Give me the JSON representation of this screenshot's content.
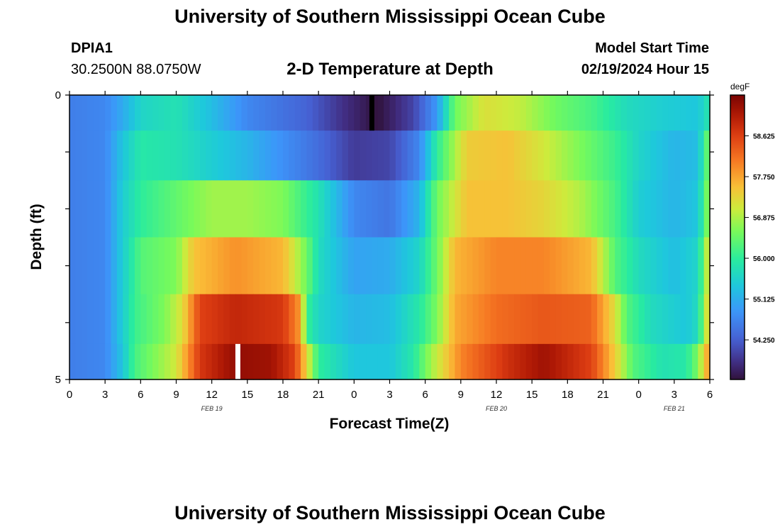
{
  "header": {
    "title": "University of Southern Mississippi Ocean Cube",
    "station_id": "DPIA1",
    "coords": "30.2500N  88.0750W",
    "plot_title": "2-D Temperature at Depth",
    "model_start_label": "Model Start Time",
    "model_start_value": "02/19/2024 Hour 15"
  },
  "footer": {
    "title": "University of Southern Mississippi Ocean Cube"
  },
  "chart_data": {
    "type": "heatmap",
    "title": "2-D Temperature at Depth",
    "xlabel": "Forecast Time(Z)",
    "ylabel": "Depth (ft)",
    "x_tick_labels": [
      "0",
      "3",
      "6",
      "9",
      "12",
      "15",
      "18",
      "21",
      "0",
      "3",
      "6",
      "9",
      "12",
      "15",
      "18",
      "21",
      "0",
      "3",
      "6"
    ],
    "x_hours_from_feb19_00z": [
      0,
      3,
      6,
      9,
      12,
      15,
      18,
      21,
      24,
      27,
      30,
      33,
      36,
      39,
      42,
      45,
      48,
      51,
      54
    ],
    "xlim_hours": [
      0,
      54
    ],
    "date_labels": [
      {
        "text": "FEB 19",
        "hour": 12
      },
      {
        "text": "FEB 20",
        "hour": 36
      },
      {
        "text": "FEB 21",
        "hour": 51
      }
    ],
    "y_tick_labels": [
      "0",
      "5"
    ],
    "ylim_ft": [
      0,
      5
    ],
    "depth_rows_ft": [
      0.25,
      1,
      2,
      3,
      4,
      4.75
    ],
    "colorbar": {
      "unit": "degF",
      "range": [
        53.4,
        59.5
      ],
      "tick_values": [
        54.25,
        55.125,
        56.0,
        56.875,
        57.75,
        58.625
      ],
      "tick_labels": [
        "54.250",
        "55.125",
        "56.000",
        "56.875",
        "57.750",
        "58.625"
      ]
    },
    "temperature_keyframes": [
      {
        "depth_ft": 0.25,
        "points": [
          [
            0,
            54.6
          ],
          [
            3,
            54.7
          ],
          [
            4.5,
            55.1
          ],
          [
            6,
            55.6
          ],
          [
            9,
            55.8
          ],
          [
            12,
            55.3
          ],
          [
            15,
            54.7
          ],
          [
            20,
            54.3
          ],
          [
            23,
            53.8
          ],
          [
            26,
            53.4
          ],
          [
            29,
            54.0
          ],
          [
            31,
            54.9
          ],
          [
            32.5,
            56.5
          ],
          [
            35,
            57.2
          ],
          [
            38,
            57.0
          ],
          [
            41,
            56.5
          ],
          [
            44,
            56.2
          ],
          [
            47,
            55.7
          ],
          [
            50,
            55.5
          ],
          [
            53,
            55.4
          ],
          [
            54,
            55.9
          ]
        ]
      },
      {
        "depth_ft": 1,
        "points": [
          [
            0,
            54.6
          ],
          [
            3,
            54.7
          ],
          [
            4.5,
            55.4
          ],
          [
            6,
            55.9
          ],
          [
            9,
            55.8
          ],
          [
            12,
            55.5
          ],
          [
            15,
            55.2
          ],
          [
            18,
            54.8
          ],
          [
            21,
            54.4
          ],
          [
            24,
            53.9
          ],
          [
            27,
            54.0
          ],
          [
            29.5,
            54.7
          ],
          [
            31,
            56.0
          ],
          [
            33.5,
            57.4
          ],
          [
            37,
            57.5
          ],
          [
            40,
            57.1
          ],
          [
            43,
            56.6
          ],
          [
            46,
            56.1
          ],
          [
            48,
            55.6
          ],
          [
            51,
            55.2
          ],
          [
            53,
            55.3
          ],
          [
            54,
            56.7
          ]
        ]
      },
      {
        "depth_ft": 2,
        "points": [
          [
            0,
            54.6
          ],
          [
            3,
            54.7
          ],
          [
            4.5,
            55.5
          ],
          [
            6,
            56.0
          ],
          [
            9,
            56.4
          ],
          [
            12,
            56.8
          ],
          [
            15,
            56.8
          ],
          [
            18,
            56.6
          ],
          [
            21,
            55.8
          ],
          [
            24,
            54.7
          ],
          [
            27,
            54.5
          ],
          [
            29.5,
            55.2
          ],
          [
            31,
            56.5
          ],
          [
            33.5,
            57.5
          ],
          [
            37,
            57.5
          ],
          [
            40,
            57.3
          ],
          [
            43,
            56.9
          ],
          [
            46,
            56.2
          ],
          [
            48,
            55.5
          ],
          [
            51,
            55.2
          ],
          [
            53,
            55.4
          ],
          [
            54,
            56.9
          ]
        ]
      },
      {
        "depth_ft": 3,
        "points": [
          [
            0,
            54.6
          ],
          [
            3,
            54.7
          ],
          [
            4.5,
            55.5
          ],
          [
            6,
            56.3
          ],
          [
            9,
            56.6
          ],
          [
            10.5,
            57.5
          ],
          [
            14,
            57.9
          ],
          [
            18,
            57.6
          ],
          [
            20,
            56.5
          ],
          [
            21,
            55.7
          ],
          [
            24,
            55.0
          ],
          [
            27,
            55.1
          ],
          [
            29.5,
            55.6
          ],
          [
            31,
            56.5
          ],
          [
            32.5,
            57.6
          ],
          [
            36,
            58.0
          ],
          [
            40,
            58.0
          ],
          [
            44,
            57.6
          ],
          [
            46,
            56.3
          ],
          [
            48,
            55.7
          ],
          [
            51,
            55.3
          ],
          [
            53,
            55.6
          ],
          [
            54,
            57.4
          ]
        ]
      },
      {
        "depth_ft": 4,
        "points": [
          [
            0,
            54.6
          ],
          [
            3,
            54.7
          ],
          [
            4.5,
            55.5
          ],
          [
            5.5,
            56.1
          ],
          [
            8,
            56.6
          ],
          [
            9.5,
            57.2
          ],
          [
            11,
            58.6
          ],
          [
            14,
            58.9
          ],
          [
            18,
            58.7
          ],
          [
            19.5,
            57.8
          ],
          [
            20,
            56.1
          ],
          [
            21,
            55.6
          ],
          [
            24,
            55.2
          ],
          [
            27,
            55.3
          ],
          [
            29.5,
            55.9
          ],
          [
            31,
            56.6
          ],
          [
            32.5,
            57.7
          ],
          [
            36,
            58.2
          ],
          [
            40,
            58.4
          ],
          [
            44,
            58.3
          ],
          [
            46,
            57.2
          ],
          [
            47,
            56.3
          ],
          [
            49,
            55.7
          ],
          [
            52,
            55.4
          ],
          [
            53,
            55.7
          ],
          [
            54,
            57.6
          ]
        ]
      },
      {
        "depth_ft": 4.75,
        "points": [
          [
            0,
            54.6
          ],
          [
            3,
            54.7
          ],
          [
            4.5,
            55.4
          ],
          [
            5.5,
            56.2
          ],
          [
            7.5,
            56.7
          ],
          [
            9,
            57.1
          ],
          [
            11,
            58.7
          ],
          [
            14,
            59.3
          ],
          [
            17,
            59.2
          ],
          [
            19,
            58.6
          ],
          [
            20,
            57.3
          ],
          [
            21,
            56.0
          ],
          [
            24,
            55.4
          ],
          [
            27,
            55.4
          ],
          [
            29,
            55.9
          ],
          [
            30.5,
            56.8
          ],
          [
            33,
            58.0
          ],
          [
            37,
            58.8
          ],
          [
            40,
            59.2
          ],
          [
            44,
            58.6
          ],
          [
            46,
            57.4
          ],
          [
            47.5,
            56.3
          ],
          [
            50,
            55.8
          ],
          [
            52,
            55.9
          ],
          [
            53,
            56.6
          ],
          [
            54,
            58.0
          ]
        ]
      }
    ],
    "markers": [
      {
        "hour": 25.5,
        "depth_ft": 0.25,
        "color": "#000000"
      },
      {
        "hour": 14.2,
        "depth_ft": 4.75,
        "color": "#ffffff"
      }
    ]
  }
}
